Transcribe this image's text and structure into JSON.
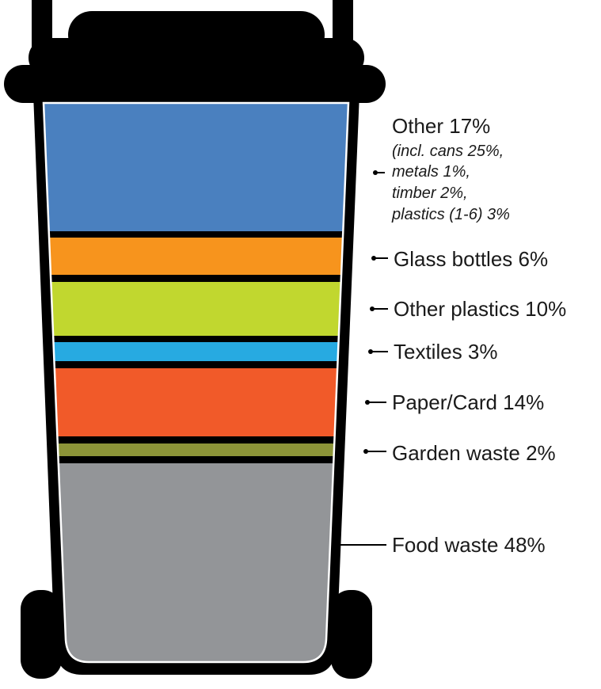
{
  "labels": [
    {
      "text": "Other 17%",
      "notes": [
        "(incl. cans 25%,",
        "metals 1%,",
        "timber 2%,",
        "plastics (1-6) 3%"
      ]
    },
    {
      "text": "Glass bottles 6%"
    },
    {
      "text": "Other plastics 10%"
    },
    {
      "text": "Textiles 3%"
    },
    {
      "text": "Paper/Card 14%"
    },
    {
      "text": "Garden waste 2%"
    },
    {
      "text": "Food waste 48%"
    }
  ]
}
